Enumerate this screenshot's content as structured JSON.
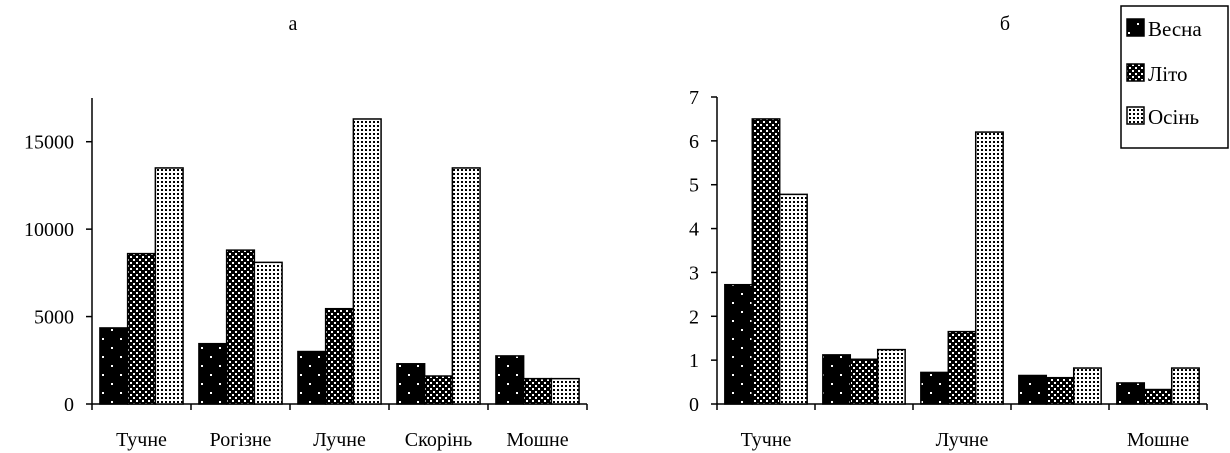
{
  "chart_data": [
    {
      "type": "bar",
      "title": "а",
      "categories": [
        "Тучне",
        "Рогізне",
        "Лучне",
        "Скорінь",
        "Мошне"
      ],
      "series": [
        {
          "name": "Весна",
          "values": [
            4350,
            3450,
            3000,
            2300,
            2750
          ]
        },
        {
          "name": "Літо",
          "values": [
            8600,
            8800,
            5450,
            1600,
            1450
          ]
        },
        {
          "name": "Осінь",
          "values": [
            13500,
            8100,
            16300,
            13500,
            1450
          ]
        }
      ],
      "yticks": [
        "0",
        "5000",
        "10000",
        "15000"
      ],
      "ylim": [
        0,
        17500
      ],
      "grid": false
    },
    {
      "type": "bar",
      "title": "б",
      "categories": [
        "Тучне",
        "",
        "Лучне",
        "",
        "Мошне"
      ],
      "series": [
        {
          "name": "Весна",
          "values": [
            2.72,
            1.12,
            0.72,
            0.65,
            0.48
          ]
        },
        {
          "name": "Літо",
          "values": [
            6.5,
            1.02,
            1.65,
            0.6,
            0.33
          ]
        },
        {
          "name": "Осінь",
          "values": [
            4.78,
            1.24,
            6.2,
            0.82,
            0.82
          ]
        }
      ],
      "yticks": [
        "0",
        "1",
        "2",
        "3",
        "4",
        "5",
        "6",
        "7"
      ],
      "ylim": [
        0,
        7
      ],
      "grid": false,
      "legend": {
        "position": "top-right",
        "entries": [
          "Весна",
          "Літо",
          "Осінь"
        ]
      }
    }
  ]
}
